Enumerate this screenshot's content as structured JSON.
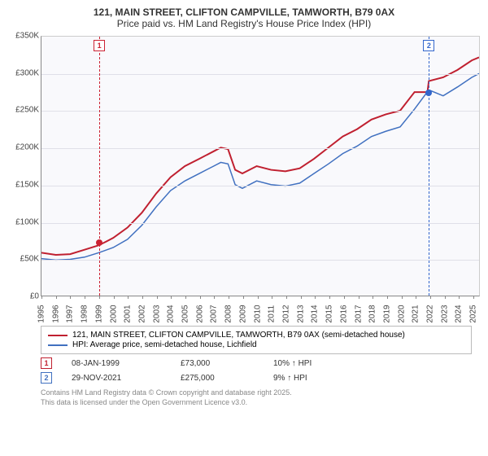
{
  "chart": {
    "title": "121, MAIN STREET, CLIFTON CAMPVILLE, TAMWORTH, B79 0AX",
    "subtitle": "Price paid vs. HM Land Registry's House Price Index (HPI)",
    "background_color": "#f9f9fc",
    "grid_color": "#e0e0e8",
    "ylim": [
      0,
      350000
    ],
    "yticks": [
      0,
      50000,
      100000,
      150000,
      200000,
      250000,
      300000,
      350000
    ],
    "ytick_labels": [
      "£0",
      "£50K",
      "£100K",
      "£150K",
      "£200K",
      "£250K",
      "£300K",
      "£350K"
    ],
    "xlim": [
      1995,
      2025.5
    ],
    "xticks": [
      1995,
      1996,
      1997,
      1998,
      1999,
      2000,
      2001,
      2002,
      2003,
      2004,
      2005,
      2006,
      2007,
      2008,
      2009,
      2010,
      2011,
      2012,
      2013,
      2014,
      2015,
      2016,
      2017,
      2018,
      2019,
      2020,
      2021,
      2022,
      2023,
      2024,
      2025
    ],
    "series": {
      "price_paid": {
        "color": "#c02030",
        "width": 2,
        "points": [
          [
            1995,
            58000
          ],
          [
            1996,
            55000
          ],
          [
            1997,
            56000
          ],
          [
            1998,
            62000
          ],
          [
            1999,
            68000
          ],
          [
            1999.5,
            73000
          ],
          [
            2000,
            78000
          ],
          [
            2001,
            92000
          ],
          [
            2002,
            112000
          ],
          [
            2003,
            138000
          ],
          [
            2004,
            160000
          ],
          [
            2005,
            175000
          ],
          [
            2006,
            185000
          ],
          [
            2007,
            195000
          ],
          [
            2007.5,
            200000
          ],
          [
            2008,
            198000
          ],
          [
            2008.5,
            170000
          ],
          [
            2009,
            165000
          ],
          [
            2010,
            175000
          ],
          [
            2011,
            170000
          ],
          [
            2012,
            168000
          ],
          [
            2013,
            172000
          ],
          [
            2014,
            185000
          ],
          [
            2015,
            200000
          ],
          [
            2016,
            215000
          ],
          [
            2017,
            225000
          ],
          [
            2018,
            238000
          ],
          [
            2019,
            245000
          ],
          [
            2020,
            250000
          ],
          [
            2021,
            275000
          ],
          [
            2021.9,
            275000
          ],
          [
            2022,
            290000
          ],
          [
            2023,
            295000
          ],
          [
            2024,
            305000
          ],
          [
            2025,
            318000
          ],
          [
            2025.5,
            322000
          ]
        ]
      },
      "hpi": {
        "color": "#4070c0",
        "width": 1.5,
        "points": [
          [
            1995,
            50000
          ],
          [
            1996,
            48000
          ],
          [
            1997,
            49000
          ],
          [
            1998,
            52000
          ],
          [
            1999,
            58000
          ],
          [
            2000,
            65000
          ],
          [
            2001,
            76000
          ],
          [
            2002,
            95000
          ],
          [
            2003,
            120000
          ],
          [
            2004,
            142000
          ],
          [
            2005,
            155000
          ],
          [
            2006,
            165000
          ],
          [
            2007,
            175000
          ],
          [
            2007.5,
            180000
          ],
          [
            2008,
            178000
          ],
          [
            2008.5,
            150000
          ],
          [
            2009,
            145000
          ],
          [
            2010,
            155000
          ],
          [
            2011,
            150000
          ],
          [
            2012,
            148000
          ],
          [
            2013,
            152000
          ],
          [
            2014,
            165000
          ],
          [
            2015,
            178000
          ],
          [
            2016,
            192000
          ],
          [
            2017,
            202000
          ],
          [
            2018,
            215000
          ],
          [
            2019,
            222000
          ],
          [
            2020,
            228000
          ],
          [
            2021,
            252000
          ],
          [
            2022,
            278000
          ],
          [
            2023,
            270000
          ],
          [
            2024,
            282000
          ],
          [
            2025,
            295000
          ],
          [
            2025.5,
            300000
          ]
        ]
      }
    },
    "sale_markers": [
      {
        "n": "1",
        "year": 1999.02,
        "price": 73000,
        "color": "#c02030"
      },
      {
        "n": "2",
        "year": 2021.91,
        "price": 275000,
        "color": "#4070c0"
      }
    ]
  },
  "legend": {
    "series1": "121, MAIN STREET, CLIFTON CAMPVILLE, TAMWORTH, B79 0AX (semi-detached house)",
    "series2": "HPI: Average price, semi-detached house, Lichfield"
  },
  "sales": [
    {
      "n": "1",
      "date": "08-JAN-1999",
      "price": "£73,000",
      "pct": "10% ↑ HPI",
      "color": "#c02030"
    },
    {
      "n": "2",
      "date": "29-NOV-2021",
      "price": "£275,000",
      "pct": "9% ↑ HPI",
      "color": "#4070c0"
    }
  ],
  "footer": {
    "line1": "Contains HM Land Registry data © Crown copyright and database right 2025.",
    "line2": "This data is licensed under the Open Government Licence v3.0."
  }
}
